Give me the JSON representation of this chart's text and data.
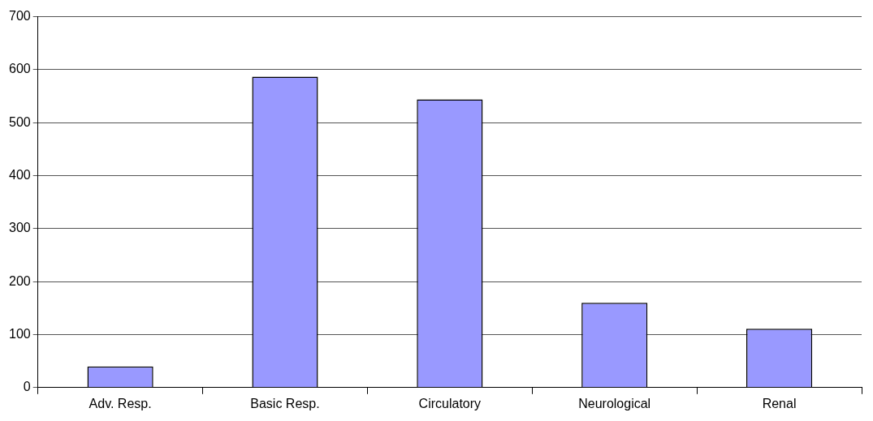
{
  "chart_data": {
    "type": "bar",
    "categories": [
      "Adv. Resp.",
      "Basic Resp.",
      "Circulatory",
      "Neurological",
      "Renal"
    ],
    "values": [
      40,
      587,
      544,
      160,
      111
    ],
    "color": "#9999ff",
    "ylim": [
      0,
      700
    ],
    "yticks": [
      0,
      100,
      200,
      300,
      400,
      500,
      600,
      700
    ],
    "grid": "y"
  }
}
